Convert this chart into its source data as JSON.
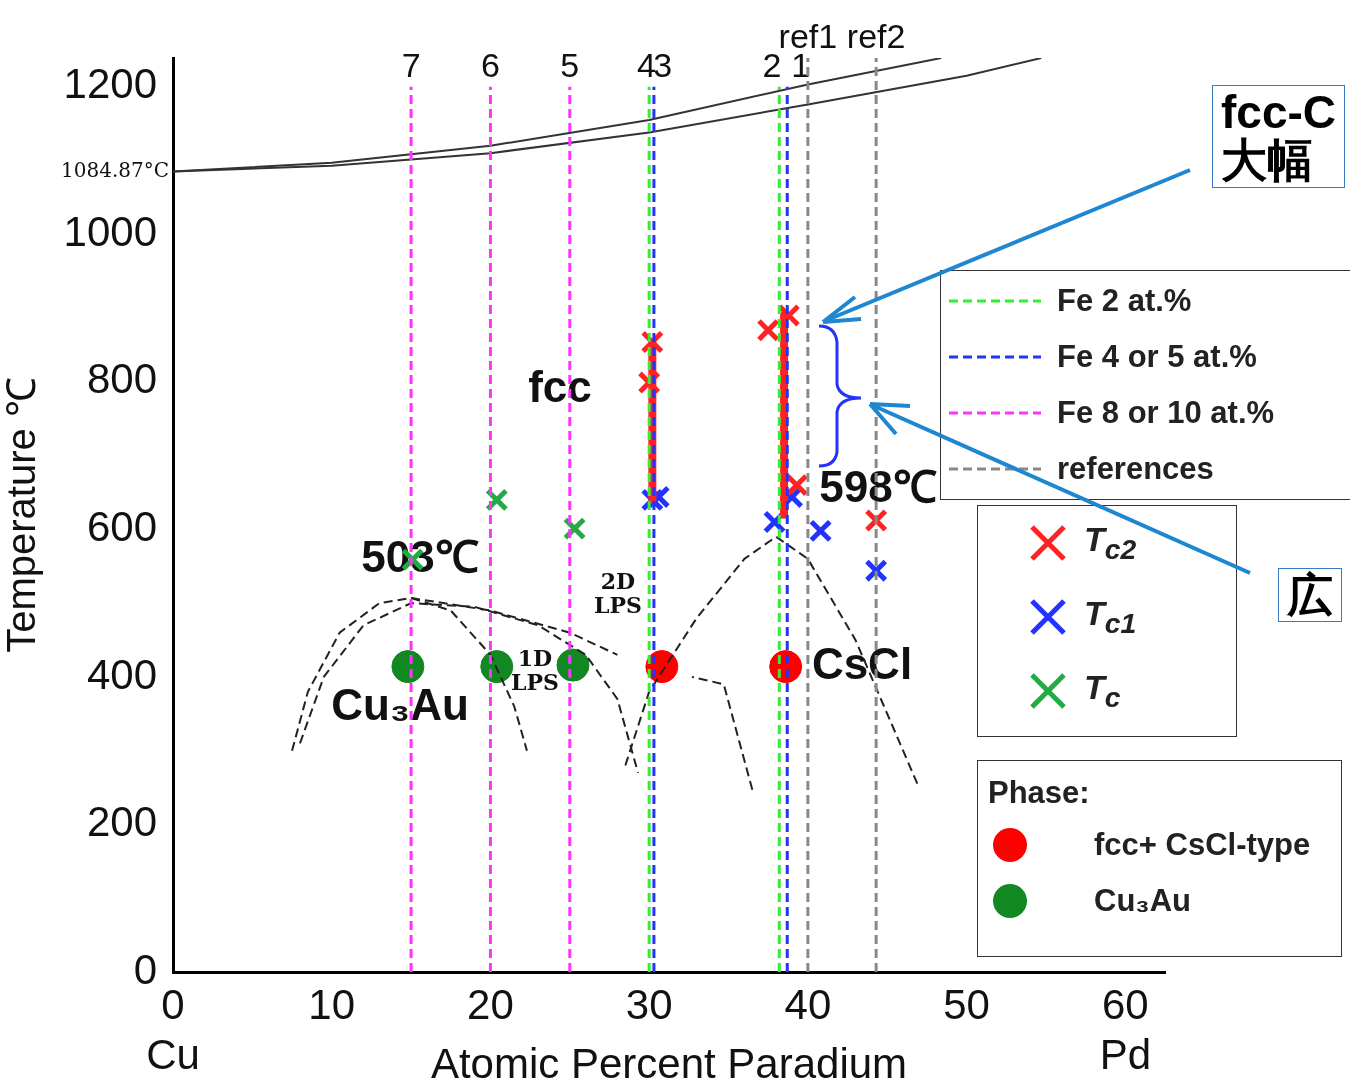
{
  "chart_data": {
    "type": "scatter",
    "xlabel": "Atomic Percent Paradium",
    "ylabel": "Temperature ℃",
    "legend_title": "Phase:",
    "legend": "right",
    "xlim": [
      0,
      62.5
    ],
    "ylim": [
      0,
      1239
    ],
    "xticks": [
      {
        "value": 0,
        "label": "0\nCu"
      },
      10,
      20,
      30,
      40,
      50,
      {
        "value": 60,
        "label": "60\nPd"
      }
    ],
    "yticks": [
      0,
      200,
      400,
      600,
      800,
      1000,
      1200
    ],
    "grid": false,
    "series": [
      {
        "name": "Fe  2 at.%",
        "type": "line",
        "line_style": "dashed",
        "color": "#33ee33",
        "x": [
          30,
          30
        ],
        "values": [
          0,
          1200
        ]
      },
      {
        "type": "line",
        "line_style": "dashed",
        "color": "#33ee33",
        "x": [
          38.2,
          38.2
        ],
        "values": [
          0,
          1200
        ]
      },
      {
        "name": "Fe 4 or 5 at.%",
        "type": "line",
        "line_style": "dashed",
        "color": "#2233ff",
        "x": [
          30.3,
          30.3
        ],
        "values": [
          0,
          1200
        ]
      },
      {
        "type": "line",
        "line_style": "dashed",
        "color": "#2233ff",
        "x": [
          38.7,
          38.7
        ],
        "values": [
          0,
          1200
        ]
      },
      {
        "name": "Fe 8 or 10 at.%",
        "type": "line",
        "line_style": "dashed",
        "color": "#ff33ff",
        "x": [
          15,
          15
        ],
        "values": [
          0,
          1200
        ]
      },
      {
        "type": "line",
        "line_style": "dashed",
        "color": "#ff33ff",
        "x": [
          20,
          20
        ],
        "values": [
          0,
          1200
        ]
      },
      {
        "type": "line",
        "line_style": "dashed",
        "color": "#ff33ff",
        "x": [
          25,
          25
        ],
        "values": [
          0,
          1200
        ]
      },
      {
        "name": "references",
        "type": "line",
        "line_style": "dashed",
        "color": "#888888",
        "x": [
          40,
          40
        ],
        "values": [
          0,
          1239
        ]
      },
      {
        "type": "line",
        "line_style": "dashed",
        "color": "#888888",
        "x": [
          44.3,
          44.3
        ],
        "values": [
          0,
          1239
        ]
      },
      {
        "type": "line",
        "line_style": "solid",
        "color": "#ff2222",
        "x": [
          30.2,
          30.2
        ],
        "values": [
          854,
          640
        ]
      },
      {
        "type": "line",
        "line_style": "solid",
        "color": "#ff2222",
        "x": [
          38.5,
          38.5
        ],
        "values": [
          890,
          620
        ]
      },
      {
        "type": "line",
        "line_style": "solid",
        "color": "#333333",
        "x": [
          0,
          10,
          20,
          30,
          40,
          48.4
        ],
        "values": [
          1085,
          1097,
          1120,
          1155,
          1203,
          1239
        ]
      },
      {
        "type": "line",
        "line_style": "solid",
        "color": "#333333",
        "x": [
          0,
          10,
          20,
          30,
          40,
          50,
          54.7
        ],
        "values": [
          1085,
          1093,
          1110,
          1138,
          1176,
          1215,
          1239
        ]
      },
      {
        "type": "line",
        "line_style": "dashed",
        "color": "#222222",
        "x": [
          7.5,
          8.5,
          10.5,
          13,
          15,
          17.5,
          20,
          21.5,
          22.3
        ],
        "values": [
          300,
          380,
          460,
          500,
          507,
          490,
          430,
          360,
          300
        ]
      },
      {
        "type": "line",
        "line_style": "dashed",
        "color": "#222222",
        "x": [
          8,
          9.5,
          12,
          15,
          19,
          23,
          26,
          28,
          29.3
        ],
        "values": [
          310,
          400,
          470,
          500,
          495,
          470,
          430,
          370,
          270
        ]
      },
      {
        "type": "line",
        "line_style": "dashed",
        "color": "#222222",
        "x": [
          15,
          20,
          25,
          28
        ],
        "values": [
          507,
          490,
          460,
          430
        ]
      },
      {
        "type": "line",
        "line_style": "dashed",
        "color": "#222222",
        "x": [
          28.5,
          30,
          33,
          36,
          38,
          40,
          43,
          45,
          47
        ],
        "values": [
          280,
          380,
          480,
          560,
          590,
          560,
          450,
          350,
          250
        ]
      },
      {
        "type": "line",
        "line_style": "dashed",
        "color": "#222222",
        "x": [
          36.5,
          34.7,
          32.7
        ],
        "values": [
          247,
          390,
          400
        ]
      },
      {
        "name": "T$_{c2}$",
        "type": "scatter",
        "marker": "cross",
        "color": "#ff2222",
        "x": [
          30.2,
          30,
          37.5,
          38.8,
          39.3,
          44.3
        ],
        "values": [
          854,
          799,
          870,
          890,
          660,
          612
        ]
      },
      {
        "name": "T$_{c1}$",
        "type": "scatter",
        "marker": "cross",
        "color": "#2233ff",
        "x": [
          30.2,
          30.6,
          37.9,
          39,
          40.8,
          44.3
        ],
        "values": [
          640,
          644,
          610,
          644,
          598,
          544
        ]
      },
      {
        "name": "T$_{c}$",
        "type": "scatter",
        "marker": "cross",
        "color": "#22aa44",
        "x": [
          15.1,
          20.4,
          25.3
        ],
        "values": [
          559,
          640,
          601
        ]
      },
      {
        "name": "fcc+ CsCl-type",
        "type": "scatter",
        "marker": "circle",
        "color": "#ff0000",
        "x": [
          30.8,
          38.6
        ],
        "values": [
          414,
          414
        ]
      },
      {
        "name": "Cu₃Au",
        "type": "scatter",
        "marker": "circle",
        "color": "#118822",
        "x": [
          14.8,
          20.4,
          25.2
        ],
        "values": [
          414,
          414,
          416
        ]
      }
    ],
    "annotations": [
      {
        "text": "1084.87°C",
        "x": 0,
        "y": 1085
      },
      {
        "text": "7",
        "x": 15,
        "y": 1200
      },
      {
        "text": "6",
        "x": 20,
        "y": 1200
      },
      {
        "text": "5",
        "x": 25,
        "y": 1200
      },
      {
        "text": "4",
        "x": 30.3,
        "y": 1200
      },
      {
        "text": "3",
        "x": 30,
        "y": 1200
      },
      {
        "text": "2",
        "x": 38.2,
        "y": 1200
      },
      {
        "text": "1",
        "x": 38.7,
        "y": 1200
      },
      {
        "text": "ref1",
        "x": 40,
        "y": 1239
      },
      {
        "text": "ref2",
        "x": 44.3,
        "y": 1239
      },
      "fcc",
      "503℃",
      "598℃",
      "Cu₃Au",
      "CsCl",
      "2D LPS",
      "1D LPS",
      "fcc-C",
      "大幅",
      "広"
    ]
  }
}
